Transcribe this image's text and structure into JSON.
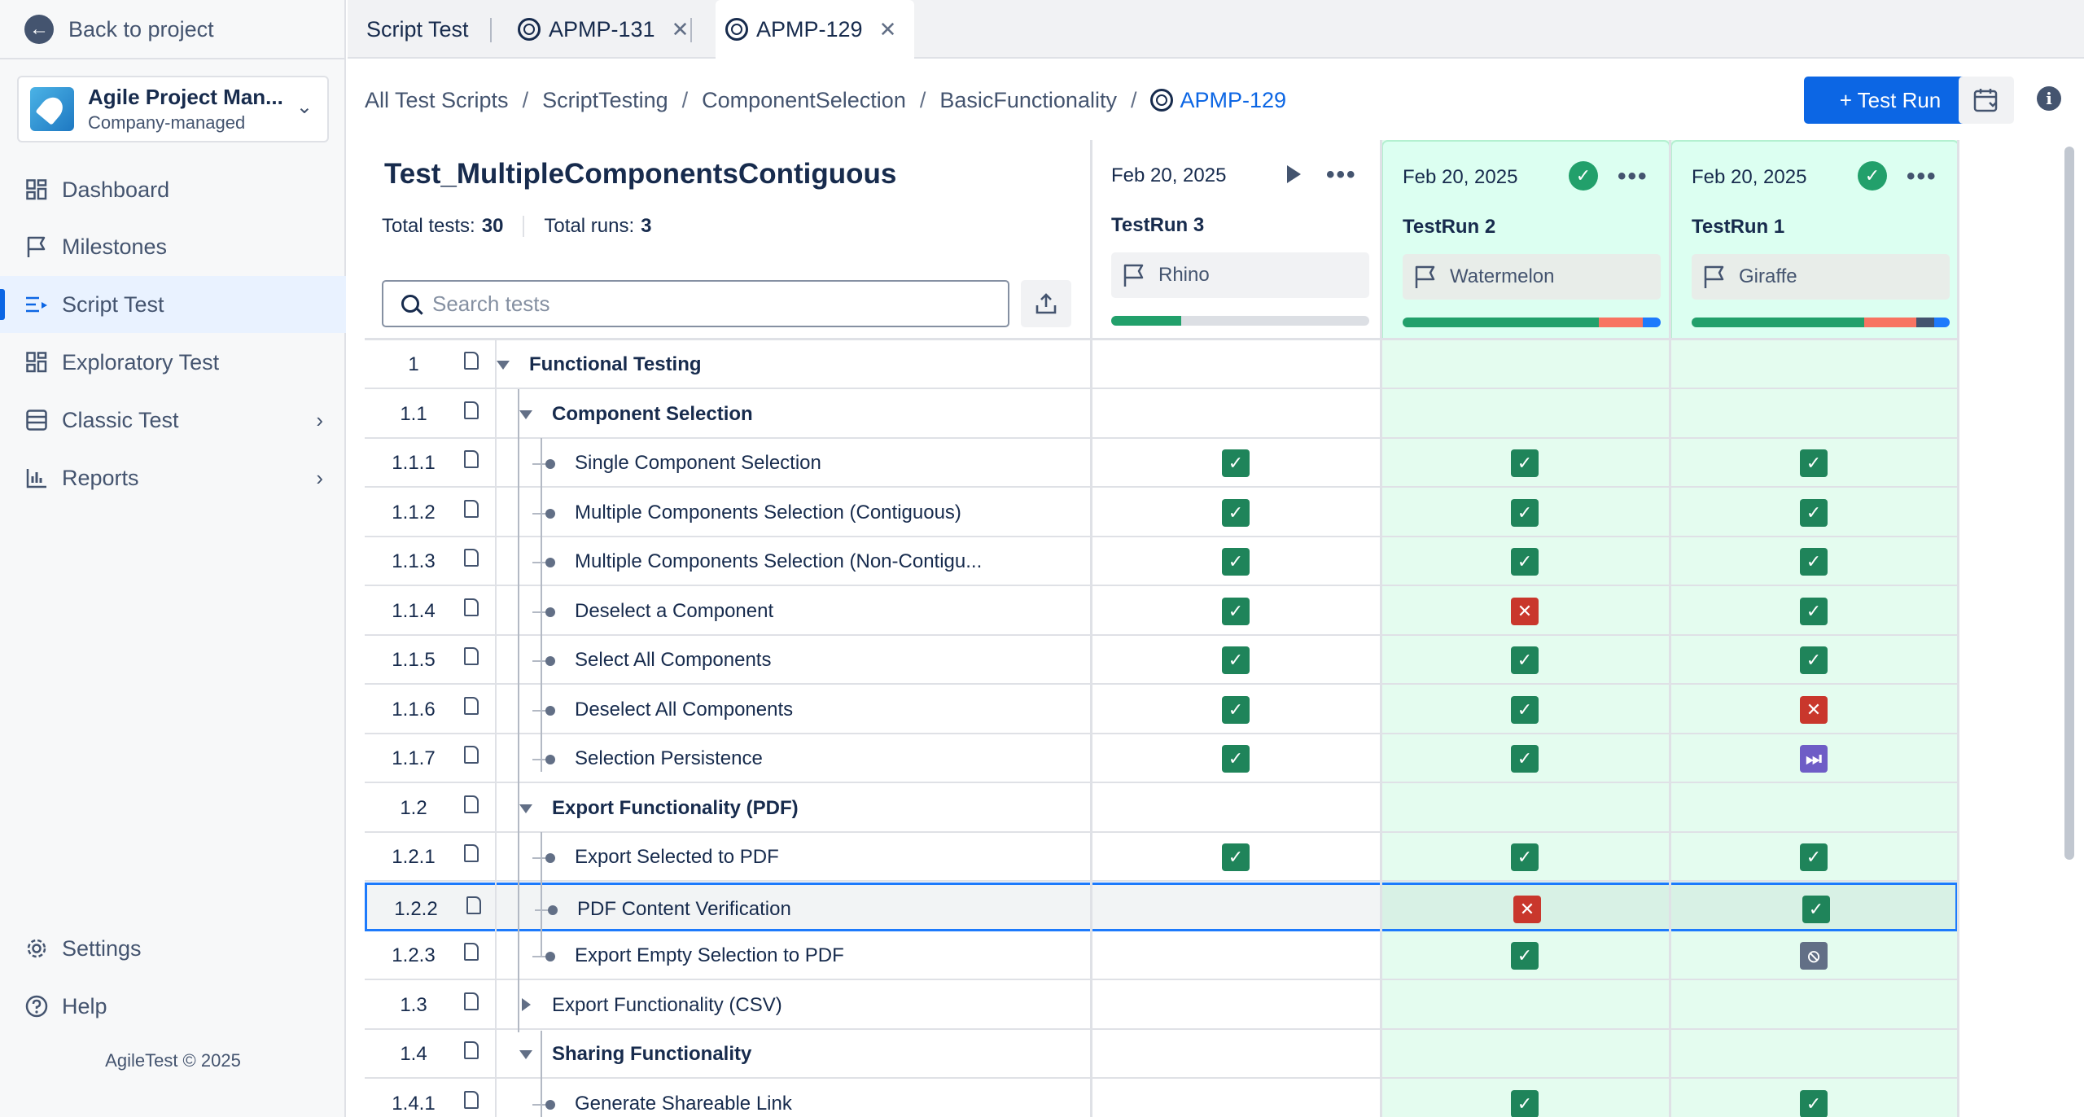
{
  "sidebar": {
    "back": "Back to project",
    "project_name": "Agile Project Man...",
    "project_type": "Company-managed",
    "items": [
      {
        "label": "Dashboard"
      },
      {
        "label": "Milestones"
      },
      {
        "label": "Script Test"
      },
      {
        "label": "Exploratory Test"
      },
      {
        "label": "Classic Test"
      },
      {
        "label": "Reports"
      }
    ],
    "settings": "Settings",
    "help": "Help",
    "copyright": "AgileTest © 2025"
  },
  "tabs": [
    {
      "label": "Script Test"
    },
    {
      "label": "APMP-131"
    },
    {
      "label": "APMP-129"
    }
  ],
  "breadcrumb": [
    "All Test Scripts",
    "ScriptTesting",
    "ComponentSelection",
    "BasicFunctionality",
    "APMP-129"
  ],
  "actions": {
    "test_run": "+ Test Run"
  },
  "script": {
    "title": "Test_MultipleComponentsContiguous",
    "total_tests_label": "Total tests:",
    "total_tests": "30",
    "total_runs_label": "Total runs:",
    "total_runs": "3",
    "search_placeholder": "Search tests"
  },
  "runs": [
    {
      "date": "Feb 20, 2025",
      "name": "TestRun 3",
      "env": "Rhino",
      "progress": [
        {
          "color": "#22a06b",
          "pct": 27
        }
      ]
    },
    {
      "date": "Feb 20, 2025",
      "name": "TestRun 2",
      "env": "Watermelon",
      "progress": [
        {
          "color": "#22a06b",
          "pct": 76
        },
        {
          "color": "#f87462",
          "pct": 17
        },
        {
          "color": "#1d7afc",
          "pct": 7
        }
      ]
    },
    {
      "date": "Feb 20, 2025",
      "name": "TestRun 1",
      "env": "Giraffe",
      "progress": [
        {
          "color": "#22a06b",
          "pct": 67
        },
        {
          "color": "#f87462",
          "pct": 20
        },
        {
          "color": "#44546f",
          "pct": 7
        },
        {
          "color": "#1d7afc",
          "pct": 6
        }
      ]
    }
  ],
  "rows": [
    {
      "num": "1",
      "title": "Functional Testing",
      "level": 0,
      "type": "group-open",
      "status": [
        "",
        "",
        ""
      ]
    },
    {
      "num": "1.1",
      "title": "Component Selection",
      "level": 1,
      "type": "group-open",
      "status": [
        "",
        "",
        ""
      ]
    },
    {
      "num": "1.1.1",
      "title": "Single Component Selection",
      "level": 2,
      "type": "item",
      "status": [
        "pass",
        "pass",
        "pass"
      ]
    },
    {
      "num": "1.1.2",
      "title": "Multiple Components Selection (Contiguous)",
      "level": 2,
      "type": "item",
      "status": [
        "pass",
        "pass",
        "pass"
      ]
    },
    {
      "num": "1.1.3",
      "title": "Multiple Components Selection (Non-Contigu...",
      "level": 2,
      "type": "item",
      "status": [
        "pass",
        "pass",
        "pass"
      ]
    },
    {
      "num": "1.1.4",
      "title": "Deselect a Component",
      "level": 2,
      "type": "item",
      "status": [
        "pass",
        "fail",
        "pass"
      ]
    },
    {
      "num": "1.1.5",
      "title": "Select All Components",
      "level": 2,
      "type": "item",
      "status": [
        "pass",
        "pass",
        "pass"
      ]
    },
    {
      "num": "1.1.6",
      "title": "Deselect All Components",
      "level": 2,
      "type": "item",
      "status": [
        "pass",
        "pass",
        "fail"
      ]
    },
    {
      "num": "1.1.7",
      "title": "Selection Persistence",
      "level": 2,
      "type": "item",
      "status": [
        "pass",
        "pass",
        "skip"
      ]
    },
    {
      "num": "1.2",
      "title": "Export Functionality (PDF)",
      "level": 1,
      "type": "group-open",
      "status": [
        "",
        "",
        ""
      ]
    },
    {
      "num": "1.2.1",
      "title": "Export Selected to PDF",
      "level": 2,
      "type": "item",
      "status": [
        "pass",
        "pass",
        "pass"
      ]
    },
    {
      "num": "1.2.2",
      "title": "PDF Content Verification",
      "level": 2,
      "type": "item",
      "status": [
        "",
        "fail",
        "pass"
      ],
      "selected": true
    },
    {
      "num": "1.2.3",
      "title": "Export Empty Selection to PDF",
      "level": 2,
      "type": "item",
      "status": [
        "",
        "pass",
        "block"
      ]
    },
    {
      "num": "1.3",
      "title": "Export Functionality (CSV)",
      "level": 1,
      "type": "group-closed",
      "status": [
        "",
        "",
        ""
      ]
    },
    {
      "num": "1.4",
      "title": "Sharing Functionality",
      "level": 1,
      "type": "group-open",
      "status": [
        "",
        "",
        ""
      ]
    },
    {
      "num": "1.4.1",
      "title": "Generate Shareable Link",
      "level": 2,
      "type": "item",
      "status": [
        "",
        "pass",
        "pass"
      ]
    }
  ]
}
